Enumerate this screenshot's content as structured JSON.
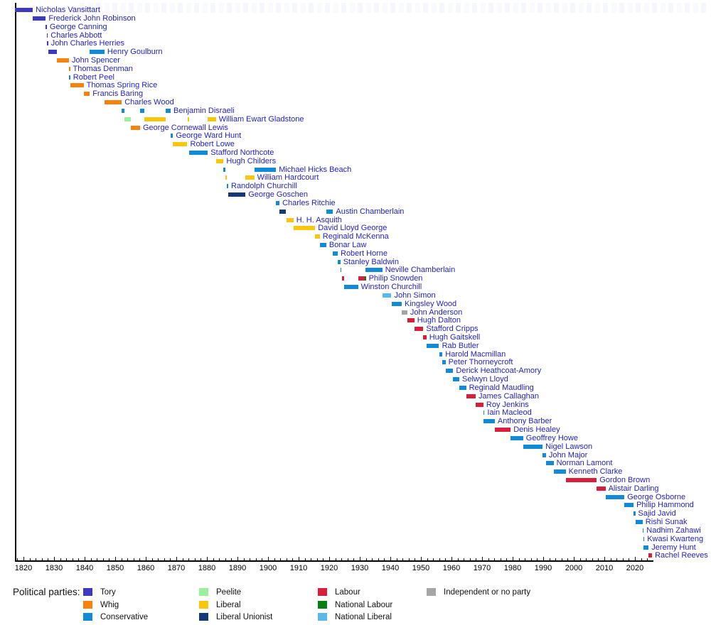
{
  "parties": {
    "tory": {
      "label": "Tory",
      "color": "#3b3ac1"
    },
    "whig": {
      "label": "Whig",
      "color": "#f8820e"
    },
    "conservative": {
      "label": "Conservative",
      "color": "#118ad8"
    },
    "peelite": {
      "label": "Peelite",
      "color": "#9cef9c"
    },
    "liberal": {
      "label": "Liberal",
      "color": "#f8c70c"
    },
    "liberal_unionist": {
      "label": "Liberal Unionist",
      "color": "#14387a"
    },
    "labour": {
      "label": "Labour",
      "color": "#d81e3a"
    },
    "national_labour": {
      "label": "National Labour",
      "color": "#0a7e12"
    },
    "national_liberal": {
      "label": "National Liberal",
      "color": "#58b9ec"
    },
    "independent": {
      "label": "Independent or no party",
      "color": "#a6a6a6"
    }
  },
  "legend": {
    "title": "Political parties:",
    "columns": [
      [
        "tory",
        "whig",
        "conservative"
      ],
      [
        "peelite",
        "liberal",
        "liberal_unionist"
      ],
      [
        "labour",
        "national_labour",
        "national_liberal"
      ],
      [
        "independent"
      ]
    ]
  },
  "chart_data": {
    "type": "bar",
    "subtype": "gantt-timeline",
    "title": "",
    "xlabel": "",
    "ylabel": "",
    "axis": {
      "min": 1817.2,
      "max": 2025.8,
      "tick_start": 1820,
      "tick_end": 2020,
      "major_step": 10,
      "minor_step": 2
    },
    "label_color": "#2323c0",
    "rows": [
      {
        "name": "Nicholas Vansittart",
        "bars": [
          [
            "tory",
            1817.2,
            1823.05
          ]
        ]
      },
      {
        "name": "Frederick John Robinson",
        "bars": [
          [
            "tory",
            1823.05,
            1827.3
          ]
        ]
      },
      {
        "name": "George Canning",
        "bars": [
          [
            "tory",
            1827.3,
            1827.62
          ]
        ]
      },
      {
        "name": "Charles Abbott",
        "bars": [
          [
            "tory",
            1827.62,
            1827.68
          ]
        ]
      },
      {
        "name": "John Charles Herries",
        "bars": [
          [
            "tory",
            1827.68,
            1828.07
          ]
        ]
      },
      {
        "name": "Henry Goulburn",
        "bars": [
          [
            "tory",
            1828.07,
            1830.88
          ],
          [
            "conservative",
            1841.67,
            1846.5
          ]
        ]
      },
      {
        "name": "John Spencer",
        "bars": [
          [
            "whig",
            1830.88,
            1834.88
          ]
        ]
      },
      {
        "name": "Thomas Denman",
        "bars": [
          [
            "whig",
            1834.88,
            1834.96
          ]
        ]
      },
      {
        "name": "Robert Peel",
        "bars": [
          [
            "conservative",
            1834.96,
            1835.3
          ]
        ]
      },
      {
        "name": "Thomas Spring Rice",
        "bars": [
          [
            "whig",
            1835.3,
            1839.67
          ]
        ]
      },
      {
        "name": "Francis Baring",
        "bars": [
          [
            "whig",
            1839.67,
            1841.67
          ]
        ]
      },
      {
        "name": "Charles Wood",
        "bars": [
          [
            "whig",
            1846.5,
            1852.15
          ]
        ]
      },
      {
        "name": "Benjamin Disraeli",
        "bars": [
          [
            "conservative",
            1852.15,
            1852.97
          ],
          [
            "conservative",
            1858.15,
            1859.45
          ],
          [
            "conservative",
            1866.5,
            1868.15
          ]
        ]
      },
      {
        "name": "William Ewart Gladstone",
        "bars": [
          [
            "peelite",
            1852.97,
            1855.15
          ],
          [
            "liberal",
            1859.45,
            1866.5
          ],
          [
            "liberal",
            1873.6,
            1874.15
          ],
          [
            "liberal",
            1880.3,
            1882.95
          ]
        ]
      },
      {
        "name": "George Cornewall Lewis",
        "bars": [
          [
            "whig",
            1855.15,
            1858.15
          ]
        ]
      },
      {
        "name": "George Ward Hunt",
        "bars": [
          [
            "conservative",
            1868.15,
            1868.92
          ]
        ]
      },
      {
        "name": "Robert Lowe",
        "bars": [
          [
            "liberal",
            1868.92,
            1873.6
          ]
        ]
      },
      {
        "name": "Stafford Northcote",
        "bars": [
          [
            "conservative",
            1874.15,
            1880.3
          ]
        ]
      },
      {
        "name": "Hugh Childers",
        "bars": [
          [
            "liberal",
            1882.95,
            1885.45
          ]
        ]
      },
      {
        "name": "Michael Hicks Beach",
        "bars": [
          [
            "conservative",
            1885.45,
            1886.1
          ],
          [
            "conservative",
            1895.5,
            1902.6
          ]
        ]
      },
      {
        "name": "William Hardcourt",
        "bars": [
          [
            "liberal",
            1886.1,
            1886.6
          ],
          [
            "liberal",
            1892.6,
            1895.5
          ]
        ]
      },
      {
        "name": "Randolph Churchill",
        "bars": [
          [
            "conservative",
            1886.6,
            1886.98
          ]
        ]
      },
      {
        "name": "George Goschen",
        "bars": [
          [
            "liberal_unionist",
            1887.0,
            1892.6
          ]
        ]
      },
      {
        "name": "Charles Ritchie",
        "bars": [
          [
            "conservative",
            1902.6,
            1903.75
          ]
        ]
      },
      {
        "name": "Austin Chamberlain",
        "bars": [
          [
            "liberal_unionist",
            1903.75,
            1905.92
          ],
          [
            "conservative",
            1919.05,
            1921.25
          ]
        ]
      },
      {
        "name": "H. H. Asquith",
        "bars": [
          [
            "liberal",
            1905.92,
            1908.3
          ]
        ]
      },
      {
        "name": "David Lloyd George",
        "bars": [
          [
            "liberal",
            1908.3,
            1915.4
          ]
        ]
      },
      {
        "name": "Reginald McKenna",
        "bars": [
          [
            "liberal",
            1915.4,
            1916.92
          ]
        ]
      },
      {
        "name": "Bonar Law",
        "bars": [
          [
            "conservative",
            1916.92,
            1919.05
          ]
        ]
      },
      {
        "name": "Robert Horne",
        "bars": [
          [
            "conservative",
            1921.25,
            1922.8
          ]
        ]
      },
      {
        "name": "Stanley Baldwin",
        "bars": [
          [
            "conservative",
            1922.8,
            1923.65
          ]
        ]
      },
      {
        "name": "Neville Chamberlain",
        "bars": [
          [
            "conservative",
            1923.65,
            1924.07
          ],
          [
            "conservative",
            1931.85,
            1937.4
          ]
        ]
      },
      {
        "name": "Philip Snowden",
        "bars": [
          [
            "labour",
            1924.07,
            1924.85
          ],
          [
            "labour",
            1929.45,
            1931.65
          ],
          [
            "national_labour",
            1931.65,
            1931.85
          ]
        ]
      },
      {
        "name": "Winston Churchill",
        "bars": [
          [
            "conservative",
            1924.85,
            1929.45
          ]
        ]
      },
      {
        "name": "John Simon",
        "bars": [
          [
            "national_liberal",
            1937.4,
            1940.35
          ]
        ]
      },
      {
        "name": "Kingsley Wood",
        "bars": [
          [
            "conservative",
            1940.35,
            1943.72
          ]
        ]
      },
      {
        "name": "John Anderson",
        "bars": [
          [
            "independent",
            1943.72,
            1945.55
          ]
        ]
      },
      {
        "name": "Hugh Dalton",
        "bars": [
          [
            "labour",
            1945.55,
            1947.85
          ]
        ]
      },
      {
        "name": "Stafford Cripps",
        "bars": [
          [
            "labour",
            1947.85,
            1950.8
          ]
        ]
      },
      {
        "name": "Hugh Gaitskell",
        "bars": [
          [
            "labour",
            1950.8,
            1951.8
          ]
        ]
      },
      {
        "name": "Rab Butler",
        "bars": [
          [
            "conservative",
            1951.8,
            1955.95
          ]
        ]
      },
      {
        "name": "Harold Macmillan",
        "bars": [
          [
            "conservative",
            1955.95,
            1957.05
          ]
        ]
      },
      {
        "name": "Peter Thorneycroft",
        "bars": [
          [
            "conservative",
            1957.05,
            1958.05
          ]
        ]
      },
      {
        "name": "Derick Heathcoat-Amory",
        "bars": [
          [
            "conservative",
            1958.05,
            1960.55
          ]
        ]
      },
      {
        "name": "Selwyn Lloyd",
        "bars": [
          [
            "conservative",
            1960.55,
            1962.55
          ]
        ]
      },
      {
        "name": "Reginald Maudling",
        "bars": [
          [
            "conservative",
            1962.55,
            1964.8
          ]
        ]
      },
      {
        "name": "James Callaghan",
        "bars": [
          [
            "labour",
            1964.8,
            1967.9
          ]
        ]
      },
      {
        "name": "Roy Jenkins",
        "bars": [
          [
            "labour",
            1967.9,
            1970.45
          ]
        ]
      },
      {
        "name": "Iain Macleod",
        "bars": [
          [
            "conservative",
            1970.45,
            1970.55
          ]
        ]
      },
      {
        "name": "Anthony Barber",
        "bars": [
          [
            "conservative",
            1970.55,
            1974.17
          ]
        ]
      },
      {
        "name": "Denis Healey",
        "bars": [
          [
            "labour",
            1974.17,
            1979.35
          ]
        ]
      },
      {
        "name": "Geoffrey Howe",
        "bars": [
          [
            "conservative",
            1979.35,
            1983.45
          ]
        ]
      },
      {
        "name": "Nigel Lawson",
        "bars": [
          [
            "conservative",
            1983.45,
            1989.8
          ]
        ]
      },
      {
        "name": "John Major",
        "bars": [
          [
            "conservative",
            1989.8,
            1990.9
          ]
        ]
      },
      {
        "name": "Norman Lamont",
        "bars": [
          [
            "conservative",
            1990.9,
            1993.4
          ]
        ]
      },
      {
        "name": "Kenneth Clarke",
        "bars": [
          [
            "conservative",
            1993.4,
            1997.35
          ]
        ]
      },
      {
        "name": "Gordon Brown",
        "bars": [
          [
            "labour",
            1997.35,
            2007.5
          ]
        ]
      },
      {
        "name": "Alistair Darling",
        "bars": [
          [
            "labour",
            2007.5,
            2010.37
          ]
        ]
      },
      {
        "name": "George Osborne",
        "bars": [
          [
            "conservative",
            2010.37,
            2016.55
          ]
        ]
      },
      {
        "name": "Philip Hammond",
        "bars": [
          [
            "conservative",
            2016.55,
            2019.55
          ]
        ]
      },
      {
        "name": "Sajid Javid",
        "bars": [
          [
            "conservative",
            2019.55,
            2020.12
          ]
        ]
      },
      {
        "name": "Rishi Sunak",
        "bars": [
          [
            "conservative",
            2020.12,
            2022.5
          ]
        ]
      },
      {
        "name": "Nadhim Zahawi",
        "bars": [
          [
            "conservative",
            2022.5,
            2022.72
          ]
        ]
      },
      {
        "name": "Kwasi Kwarteng",
        "bars": [
          [
            "conservative",
            2022.72,
            2022.82
          ]
        ]
      },
      {
        "name": "Jeremy Hunt",
        "bars": [
          [
            "conservative",
            2022.82,
            2024.5
          ]
        ]
      },
      {
        "name": "Rachel Reeves",
        "bars": [
          [
            "labour",
            2024.5,
            2025.6
          ]
        ]
      }
    ]
  }
}
